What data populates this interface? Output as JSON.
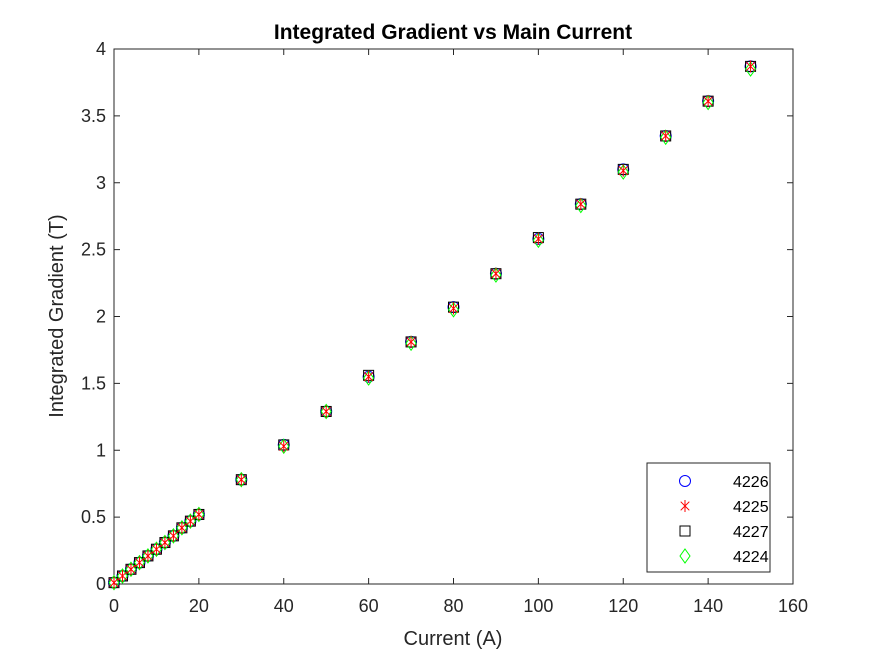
{
  "chart_data": {
    "type": "scatter",
    "title": "Integrated Gradient vs Main Current",
    "xlabel": "Current (A)",
    "ylabel": "Integrated Gradient (T)",
    "xlim": [
      0,
      160
    ],
    "ylim": [
      0,
      4
    ],
    "xticks": [
      "0",
      "20",
      "40",
      "60",
      "80",
      "100",
      "120",
      "140",
      "160"
    ],
    "yticks": [
      "0",
      "0.5",
      "1",
      "1.5",
      "2",
      "2.5",
      "3",
      "3.5",
      "4"
    ],
    "grid": false,
    "legend_position": "bottom-right",
    "series": [
      {
        "name": "4226",
        "marker": "circle",
        "color": "#0000ff",
        "x": [
          0,
          2,
          4,
          6,
          8,
          10,
          12,
          14,
          16,
          18,
          20,
          30,
          40,
          50,
          60,
          70,
          80,
          90,
          100,
          110,
          120,
          130,
          140,
          150
        ],
        "y": [
          0.01,
          0.06,
          0.11,
          0.16,
          0.21,
          0.26,
          0.31,
          0.36,
          0.42,
          0.47,
          0.52,
          0.78,
          1.04,
          1.29,
          1.55,
          1.81,
          2.07,
          2.32,
          2.58,
          2.84,
          3.1,
          3.35,
          3.61,
          3.87
        ]
      },
      {
        "name": "4225",
        "marker": "asterisk",
        "color": "#ff0000",
        "x": [
          0,
          2,
          4,
          6,
          8,
          10,
          12,
          14,
          16,
          18,
          20,
          30,
          40,
          50,
          60,
          70,
          80,
          90,
          100,
          110,
          120,
          130,
          140,
          150
        ],
        "y": [
          0.01,
          0.06,
          0.11,
          0.16,
          0.21,
          0.26,
          0.31,
          0.36,
          0.42,
          0.47,
          0.52,
          0.78,
          1.03,
          1.29,
          1.55,
          1.81,
          2.06,
          2.32,
          2.58,
          2.84,
          3.09,
          3.35,
          3.61,
          3.87
        ]
      },
      {
        "name": "4227",
        "marker": "square",
        "color": "#000000",
        "x": [
          0,
          2,
          4,
          6,
          8,
          10,
          12,
          14,
          16,
          18,
          20,
          30,
          40,
          50,
          60,
          70,
          80,
          90,
          100,
          110,
          120,
          130,
          140,
          150
        ],
        "y": [
          0.01,
          0.06,
          0.11,
          0.16,
          0.21,
          0.26,
          0.31,
          0.36,
          0.42,
          0.47,
          0.52,
          0.78,
          1.04,
          1.29,
          1.56,
          1.81,
          2.07,
          2.32,
          2.59,
          2.84,
          3.1,
          3.35,
          3.61,
          3.87
        ]
      },
      {
        "name": "4224",
        "marker": "diamond",
        "color": "#00ff00",
        "x": [
          0,
          2,
          4,
          6,
          8,
          10,
          12,
          14,
          16,
          18,
          20,
          30,
          40,
          50,
          60,
          70,
          80,
          90,
          100,
          110,
          120,
          130,
          140,
          150
        ],
        "y": [
          0.01,
          0.06,
          0.11,
          0.16,
          0.21,
          0.26,
          0.31,
          0.36,
          0.42,
          0.47,
          0.52,
          0.78,
          1.03,
          1.29,
          1.54,
          1.8,
          2.05,
          2.31,
          2.57,
          2.83,
          3.08,
          3.34,
          3.6,
          3.85
        ]
      }
    ]
  }
}
